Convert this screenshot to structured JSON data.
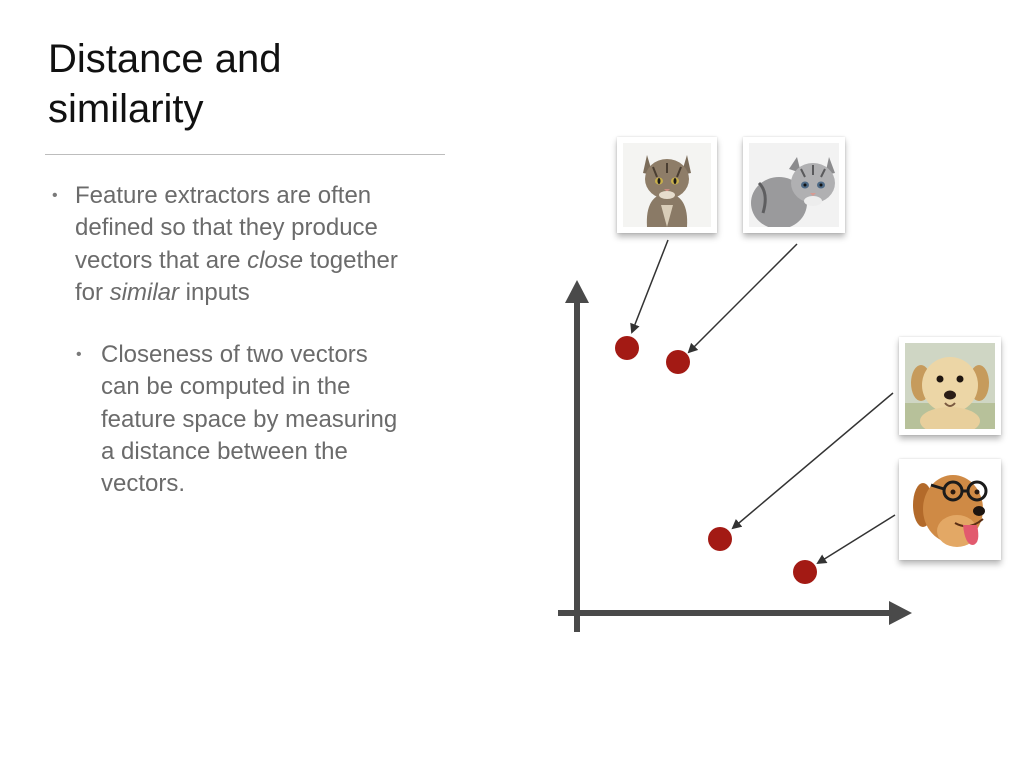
{
  "slide": {
    "title_lines": [
      "Distance and",
      "similarity"
    ],
    "bullet1": {
      "lines": [
        "Feature extractors are often",
        "defined so that they produce",
        [
          "vectors that are ",
          "close",
          " together"
        ],
        [
          "for ",
          "similar",
          " inputs"
        ]
      ],
      "line1": "Feature extractors are often",
      "line2": "defined so that they produce",
      "line3_a": "vectors that are ",
      "line3_em": "close",
      "line3_b": " together",
      "line4_a": "for ",
      "line4_em": "similar",
      "line4_b": " inputs"
    },
    "bullet2": {
      "line1": "Closeness of two vectors",
      "line2": "can be computed in the",
      "line3": "feature space by measuring",
      "line4": "a distance between the",
      "line5": "vectors."
    },
    "bullet_glyph": "•"
  },
  "diagram": {
    "point_color": "#a31a14",
    "axis_color": "#4a4a4a",
    "images": [
      {
        "name": "tabby-cat-photo",
        "icon": "tabby-cat"
      },
      {
        "name": "gray-kitten-photo",
        "icon": "gray-kitten"
      },
      {
        "name": "puppy-photo",
        "icon": "golden-puppy"
      },
      {
        "name": "dog-with-glasses-photo",
        "icon": "golden-retriever-glasses"
      }
    ]
  }
}
